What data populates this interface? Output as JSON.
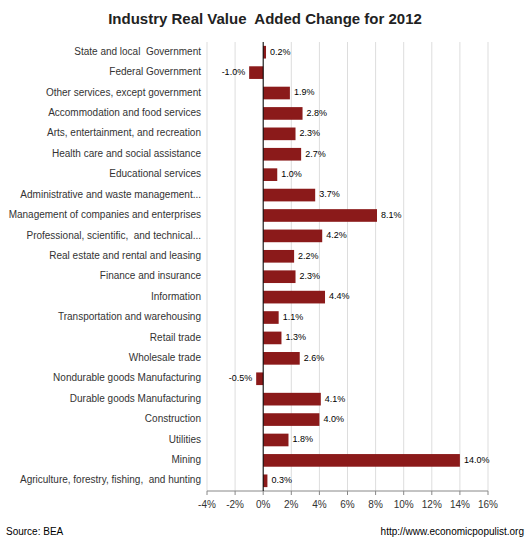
{
  "chart_data": {
    "type": "bar",
    "orientation": "horizontal",
    "title": "Industry Real Value  Added Change for 2012",
    "categories": [
      "State and local  Government",
      "Federal Government",
      "Other services, except government",
      "Accommodation and food services",
      "Arts, entertainment, and recreation",
      "Health care and social assistance",
      "Educational services",
      "Administrative and waste management...",
      "Management of companies and enterprises",
      "Professional, scientific,  and technical...",
      "Real estate and rental and leasing",
      "Finance and insurance",
      "Information",
      "Transportation and warehousing",
      "Retail trade",
      "Wholesale trade",
      "Nondurable goods Manufacturing",
      "Durable goods Manufacturing",
      "Construction",
      "Utilities",
      "Mining",
      "Agriculture, forestry, fishing,  and hunting"
    ],
    "values": [
      0.2,
      -1.0,
      1.9,
      2.8,
      2.3,
      2.7,
      1.0,
      3.7,
      8.1,
      4.2,
      2.2,
      2.3,
      4.4,
      1.1,
      1.3,
      2.6,
      -0.5,
      4.1,
      4.0,
      1.8,
      14.0,
      0.3
    ],
    "value_labels": [
      "0.2%",
      "-1.0%",
      "1.9%",
      "2.8%",
      "2.3%",
      "2.7%",
      "1.0%",
      "3.7%",
      "8.1%",
      "4.2%",
      "2.2%",
      "2.3%",
      "4.4%",
      "1.1%",
      "1.3%",
      "2.6%",
      "-0.5%",
      "4.1%",
      "4.0%",
      "1.8%",
      "14.0%",
      "0.3%"
    ],
    "data_labels": true,
    "color": "#8B1A1A",
    "xlim": [
      -4,
      16
    ],
    "xticks": [
      {
        "value": -4,
        "label": "-4%"
      },
      {
        "value": -2,
        "label": "-2%"
      },
      {
        "value": 0,
        "label": "0%"
      },
      {
        "value": 2,
        "label": "2%"
      },
      {
        "value": 4,
        "label": "4%"
      },
      {
        "value": 6,
        "label": "6%"
      },
      {
        "value": 8,
        "label": "8%"
      },
      {
        "value": 10,
        "label": "10%"
      },
      {
        "value": 12,
        "label": "12%"
      },
      {
        "value": 14,
        "label": "14%"
      },
      {
        "value": 16,
        "label": "16%"
      }
    ],
    "grid": true,
    "annotations": [
      "Source: BEA",
      "http://www.economicpopulist.org"
    ]
  }
}
